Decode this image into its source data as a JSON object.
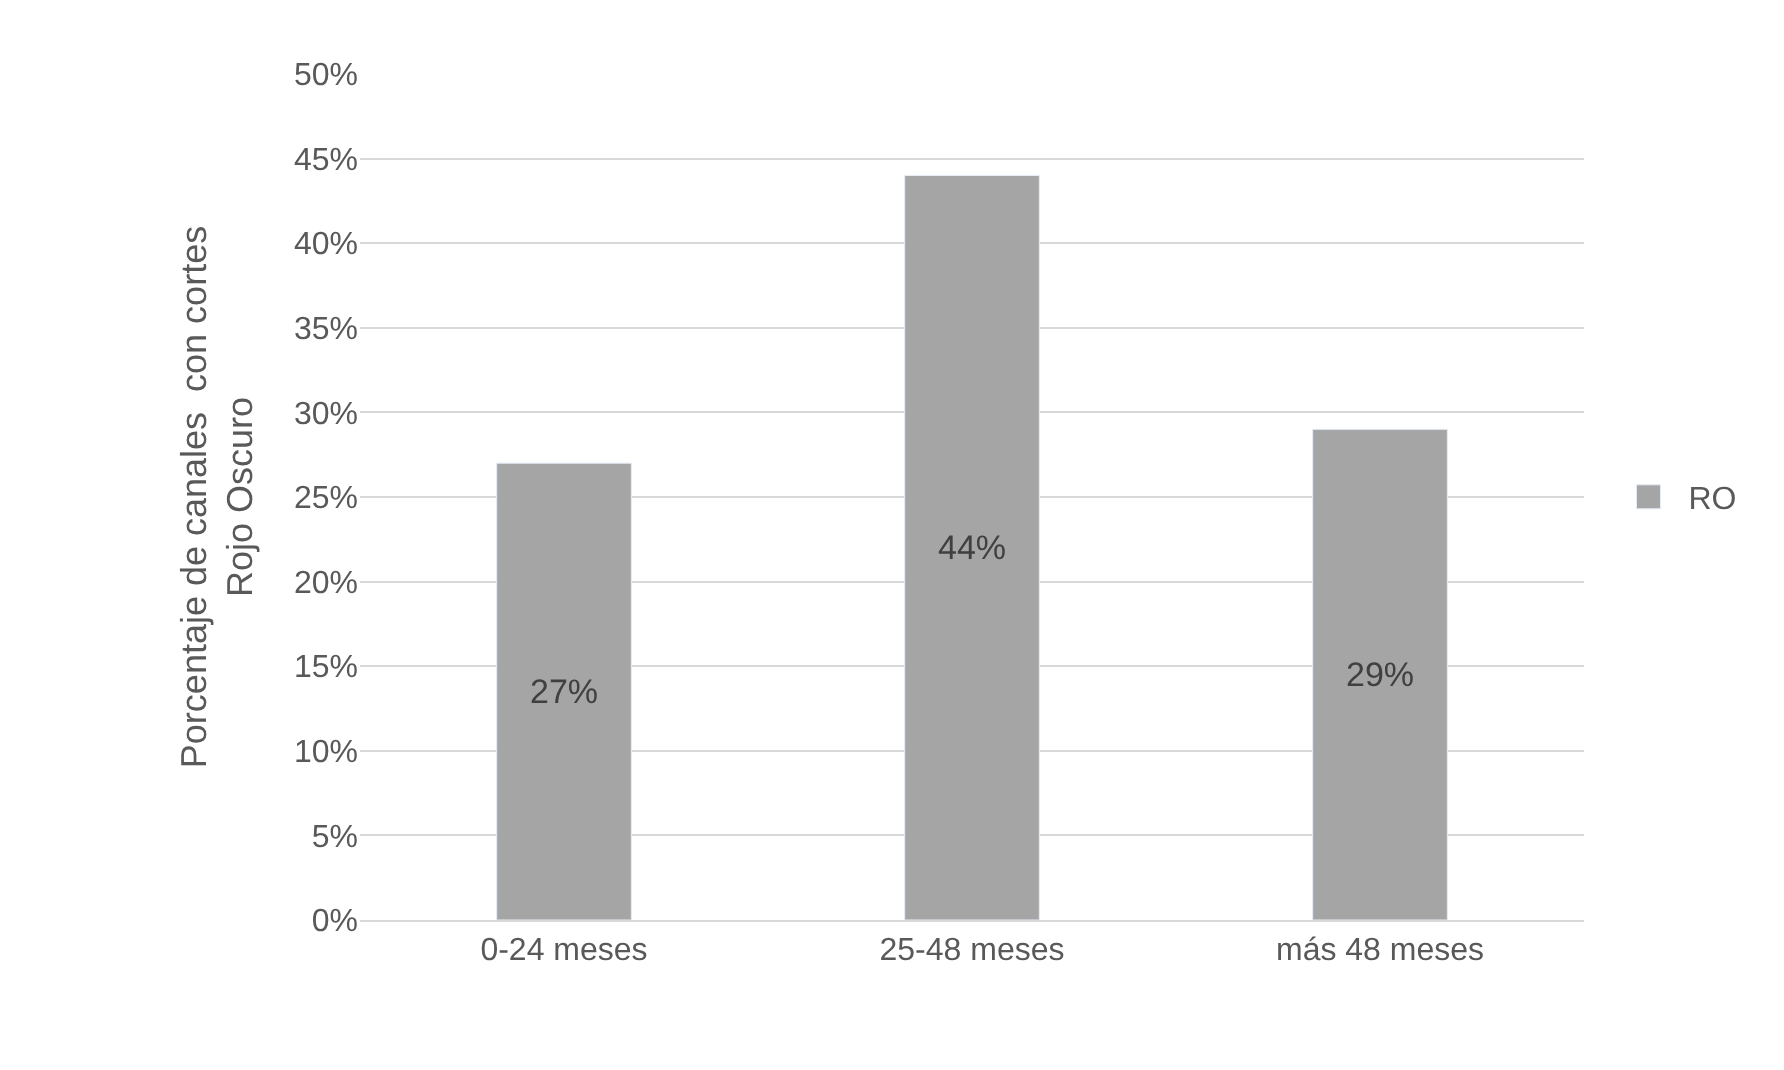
{
  "chart_data": {
    "type": "bar",
    "ylabel": "Porcentaje de canales  con cortes\nRojo Oscuro",
    "categories": [
      "0-24 meses",
      "25-48 meses",
      "más 48 meses"
    ],
    "series": [
      {
        "name": "RO",
        "color": "#a5a5a5",
        "values": [
          27,
          44,
          29
        ],
        "value_labels": [
          "27%",
          "44%",
          "29%"
        ]
      }
    ],
    "ylim": [
      0,
      50
    ],
    "yticks": [
      {
        "value": 0,
        "label": "0%"
      },
      {
        "value": 5,
        "label": "5%"
      },
      {
        "value": 10,
        "label": "10%"
      },
      {
        "value": 15,
        "label": "15%"
      },
      {
        "value": 20,
        "label": "20%"
      },
      {
        "value": 25,
        "label": "25%"
      },
      {
        "value": 30,
        "label": "30%"
      },
      {
        "value": 35,
        "label": "35%"
      },
      {
        "value": 40,
        "label": "40%"
      },
      {
        "value": 45,
        "label": "45%"
      },
      {
        "value": 50,
        "label": "50%"
      }
    ],
    "grid": "y",
    "legend": "right"
  }
}
